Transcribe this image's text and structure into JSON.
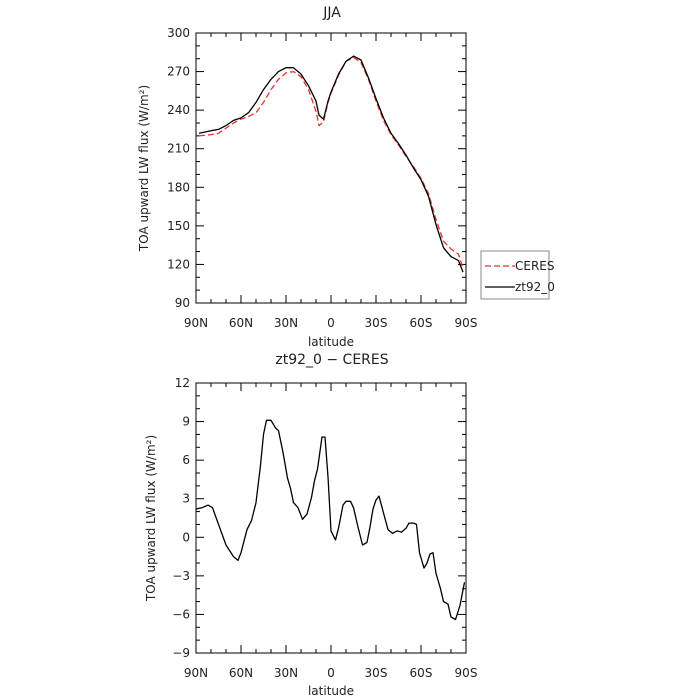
{
  "chart_data": [
    {
      "type": "line",
      "title": "JJA",
      "xlabel": "latitude",
      "ylabel": "TOA upward LW flux (W/m²)",
      "xlim": [
        90,
        -90
      ],
      "ylim": [
        90,
        300
      ],
      "xticks": [
        90,
        60,
        30,
        0,
        -30,
        -60,
        -90
      ],
      "xtick_labels": [
        "90N",
        "60N",
        "30N",
        "0",
        "30S",
        "60S",
        "90S"
      ],
      "yticks": [
        90,
        120,
        150,
        180,
        210,
        240,
        270,
        300
      ],
      "ytick_labels": [
        "90",
        "120",
        "150",
        "180",
        "210",
        "240",
        "270",
        "300"
      ],
      "grid": false,
      "legend_position": "right-outside",
      "series": [
        {
          "name": "CERES",
          "color": "#e8312a",
          "dash": "dashed",
          "x": [
            88,
            80,
            75,
            70,
            65,
            60,
            55,
            50,
            45,
            40,
            35,
            30,
            25,
            20,
            15,
            10,
            8,
            5,
            2,
            0,
            -5,
            -10,
            -15,
            -20,
            -25,
            -30,
            -35,
            -40,
            -45,
            -50,
            -55,
            -60,
            -65,
            -70,
            -75,
            -80,
            -85,
            -88
          ],
          "y": [
            220,
            221,
            222,
            226,
            230,
            233,
            235,
            238,
            246,
            256,
            264,
            269,
            270,
            266,
            256,
            239,
            228,
            231,
            246,
            253,
            267,
            278,
            281,
            277,
            264,
            247,
            232,
            221,
            213,
            204,
            196,
            187,
            175,
            155,
            138,
            132,
            128,
            117
          ]
        },
        {
          "name": "zt92_0",
          "color": "#000000",
          "dash": "solid",
          "x": [
            88,
            80,
            75,
            70,
            65,
            60,
            55,
            50,
            45,
            40,
            35,
            30,
            25,
            20,
            15,
            10,
            8,
            5,
            2,
            0,
            -5,
            -10,
            -15,
            -20,
            -25,
            -30,
            -35,
            -40,
            -45,
            -50,
            -55,
            -60,
            -65,
            -70,
            -75,
            -80,
            -85,
            -88
          ],
          "y": [
            222,
            224,
            225,
            228,
            232,
            234,
            238,
            246,
            256,
            264,
            270,
            273,
            273,
            268,
            259,
            247,
            236,
            233,
            247,
            254,
            268,
            278,
            282,
            279,
            265,
            249,
            234,
            222,
            214,
            205,
            195,
            186,
            173,
            151,
            133,
            126,
            123,
            114
          ]
        }
      ]
    },
    {
      "type": "line",
      "title": "zt92_0 − CERES",
      "xlabel": "latitude",
      "ylabel": "TOA upward LW flux (W/m²)",
      "xlim": [
        90,
        -90
      ],
      "ylim": [
        -9,
        12
      ],
      "xticks": [
        90,
        60,
        30,
        0,
        -30,
        -60,
        -90
      ],
      "xtick_labels": [
        "90N",
        "60N",
        "30N",
        "0",
        "30S",
        "60S",
        "90S"
      ],
      "yticks": [
        -9,
        -6,
        -3,
        0,
        3,
        6,
        9,
        12
      ],
      "ytick_labels": [
        "−9",
        "−6",
        "−3",
        "0",
        "3",
        "6",
        "9",
        "12"
      ],
      "grid": false,
      "series": [
        {
          "color": "#000000",
          "dash": "solid",
          "x": [
            90,
            86,
            82,
            79,
            75,
            70,
            65,
            62,
            60,
            56,
            53,
            50,
            47,
            45,
            43,
            40,
            37,
            35,
            32,
            29,
            27,
            25,
            22,
            19,
            16,
            13,
            11,
            9,
            6,
            4,
            2,
            0,
            -3,
            -5,
            -8,
            -10,
            -13,
            -15,
            -18,
            -21,
            -24,
            -26,
            -28,
            -30,
            -32,
            -35,
            -38,
            -41,
            -44,
            -47,
            -50,
            -52,
            -55,
            -57,
            -59,
            -62,
            -64,
            -66,
            -68,
            -70,
            -73,
            -75,
            -78,
            -80,
            -83,
            -86,
            -89
          ],
          "y": [
            2.2,
            2.3,
            2.5,
            2.3,
            1.0,
            -0.6,
            -1.5,
            -1.8,
            -1.2,
            0.6,
            1.3,
            2.7,
            5.6,
            8.0,
            9.1,
            9.1,
            8.5,
            8.3,
            6.6,
            4.6,
            3.8,
            2.7,
            2.3,
            1.4,
            1.8,
            3.1,
            4.4,
            5.3,
            7.8,
            7.8,
            4.7,
            0.5,
            -0.2,
            0.7,
            2.5,
            2.8,
            2.8,
            2.3,
            0.8,
            -0.6,
            -0.4,
            0.8,
            2.2,
            2.9,
            3.2,
            1.9,
            0.6,
            0.3,
            0.5,
            0.4,
            0.7,
            1.1,
            1.1,
            1.0,
            -1.2,
            -2.4,
            -2.0,
            -1.3,
            -1.2,
            -2.8,
            -4.0,
            -5.0,
            -5.2,
            -6.2,
            -6.4,
            -5.3,
            -3.5
          ]
        }
      ]
    }
  ]
}
